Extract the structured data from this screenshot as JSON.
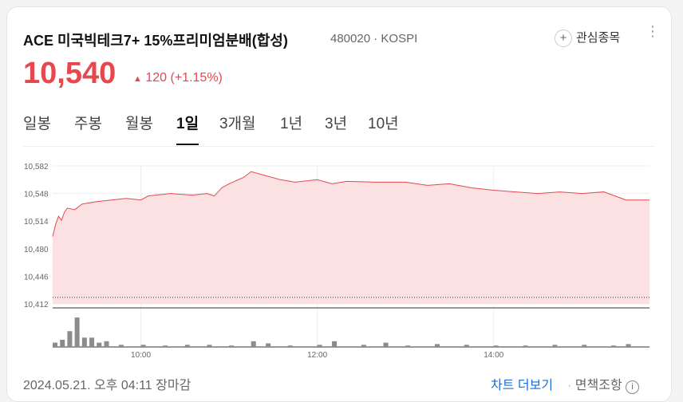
{
  "header": {
    "title": "ACE 미국빅테크7+ 15%프리미엄분배(합성)",
    "code": "480020",
    "market": "KOSPI",
    "watch": "관심종목",
    "price": "10,540",
    "change": "120",
    "change_pct": "(+1.15%)"
  },
  "tabs": [
    "일봉",
    "주봉",
    "월봉",
    "1일",
    "3개월",
    "1년",
    "3년",
    "10년"
  ],
  "footer": {
    "date": "2024.05.21. 오후 04:11 장마감",
    "more": "차트 더보기",
    "disclaimer": "면책조항"
  },
  "chart_data": [
    {
      "type": "line",
      "color": "#e5484d",
      "fill": "#fbe1e1",
      "x": [
        "09:00",
        "09:02",
        "09:04",
        "09:06",
        "09:08",
        "09:10",
        "09:15",
        "09:20",
        "09:30",
        "09:40",
        "09:50",
        "10:00",
        "10:05",
        "10:20",
        "10:35",
        "10:45",
        "10:50",
        "10:55",
        "11:00",
        "11:10",
        "11:15",
        "11:25",
        "11:35",
        "11:45",
        "12:00",
        "12:10",
        "12:20",
        "12:40",
        "13:00",
        "13:15",
        "13:30",
        "13:45",
        "14:00",
        "14:15",
        "14:30",
        "14:45",
        "15:00",
        "15:15",
        "15:30",
        "15:46"
      ],
      "values": [
        10495,
        10510,
        10520,
        10515,
        10525,
        10530,
        10528,
        10535,
        10538,
        10540,
        10542,
        10540,
        10545,
        10548,
        10546,
        10548,
        10545,
        10555,
        10560,
        10568,
        10575,
        10570,
        10565,
        10562,
        10565,
        10560,
        10563,
        10562,
        10562,
        10558,
        10560,
        10555,
        10552,
        10550,
        10548,
        10550,
        10548,
        10550,
        10540,
        10540
      ],
      "xlim": [
        "09:00",
        "15:46"
      ],
      "xticks": [
        "10:00",
        "12:00",
        "14:00"
      ],
      "ylim": [
        10412,
        10582
      ],
      "yticks": [
        {
          "value": 10582,
          "label": "10,582"
        },
        {
          "value": 10548,
          "label": "10,548"
        },
        {
          "value": 10514,
          "label": "10,514"
        },
        {
          "value": 10480,
          "label": "10,480"
        },
        {
          "value": 10446,
          "label": "10,446"
        },
        {
          "value": 10412,
          "label": "10,412"
        }
      ],
      "reference_line": 10420,
      "grid": true
    },
    {
      "type": "bar",
      "color": "#8c8c8c",
      "x": [
        "09:00",
        "09:05",
        "09:10",
        "09:15",
        "09:20",
        "09:25",
        "09:30",
        "09:35",
        "09:45",
        "10:00",
        "10:15",
        "10:30",
        "10:45",
        "11:00",
        "11:15",
        "11:25",
        "11:40",
        "12:00",
        "12:10",
        "12:30",
        "12:45",
        "13:00",
        "13:20",
        "13:40",
        "14:00",
        "14:20",
        "14:40",
        "15:00",
        "15:20",
        "15:30"
      ],
      "values": [
        6,
        10,
        22,
        41,
        13,
        13,
        6,
        8,
        3,
        3,
        2,
        3,
        3,
        2,
        8,
        5,
        2,
        3,
        8,
        3,
        6,
        2,
        4,
        3,
        2,
        2,
        3,
        3,
        2,
        4
      ],
      "xlim": [
        "09:00",
        "15:46"
      ],
      "ylim": [
        0,
        50
      ]
    }
  ]
}
